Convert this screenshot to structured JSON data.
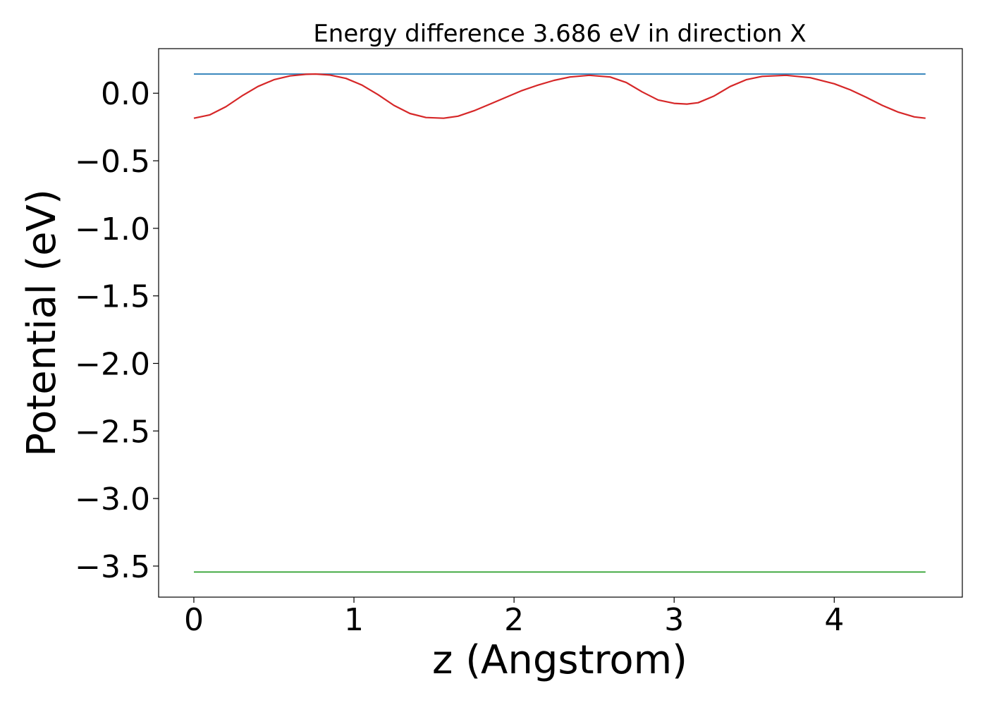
{
  "chart_data": {
    "type": "line",
    "title": "Energy difference 3.686 eV in direction X",
    "xlabel": "z (Angstrom)",
    "ylabel": "Potential (eV)",
    "xlim": [
      -0.22,
      4.8
    ],
    "ylim": [
      -3.73,
      0.33
    ],
    "xticks": [
      0,
      1,
      2,
      3,
      4
    ],
    "xtick_labels": [
      "0",
      "1",
      "2",
      "3",
      "4"
    ],
    "yticks": [
      0.0,
      -0.5,
      -1.0,
      -1.5,
      -2.0,
      -2.5,
      -3.0,
      -3.5
    ],
    "ytick_labels": [
      "0.0",
      "−0.5",
      "−1.0",
      "−1.5",
      "−2.0",
      "−2.5",
      "−3.0",
      "−3.5"
    ],
    "grid": false,
    "series": [
      {
        "color": "#1f77b4",
        "x": [
          0,
          4.57
        ],
        "y": [
          0.142,
          0.142
        ]
      },
      {
        "color": "#d62728",
        "x": [
          0,
          0.1,
          0.2,
          0.3,
          0.4,
          0.5,
          0.6,
          0.7,
          0.76,
          0.85,
          0.95,
          1.05,
          1.15,
          1.25,
          1.35,
          1.45,
          1.56,
          1.65,
          1.75,
          1.85,
          1.95,
          2.05,
          2.15,
          2.25,
          2.35,
          2.47,
          2.6,
          2.7,
          2.8,
          2.9,
          3.0,
          3.08,
          3.15,
          3.25,
          3.35,
          3.45,
          3.55,
          3.7,
          3.85,
          4.0,
          4.1,
          4.2,
          4.3,
          4.4,
          4.5,
          4.57
        ],
        "y": [
          -0.185,
          -0.16,
          -0.1,
          -0.02,
          0.05,
          0.1,
          0.128,
          0.14,
          0.142,
          0.135,
          0.11,
          0.06,
          -0.01,
          -0.09,
          -0.15,
          -0.18,
          -0.185,
          -0.17,
          -0.13,
          -0.08,
          -0.03,
          0.02,
          0.06,
          0.095,
          0.12,
          0.133,
          0.12,
          0.08,
          0.01,
          -0.05,
          -0.075,
          -0.08,
          -0.07,
          -0.02,
          0.05,
          0.1,
          0.125,
          0.133,
          0.115,
          0.07,
          0.025,
          -0.03,
          -0.09,
          -0.14,
          -0.175,
          -0.185
        ]
      },
      {
        "color": "#2ca02c",
        "x": [
          0,
          4.57
        ],
        "y": [
          -3.544,
          -3.544
        ]
      }
    ]
  }
}
